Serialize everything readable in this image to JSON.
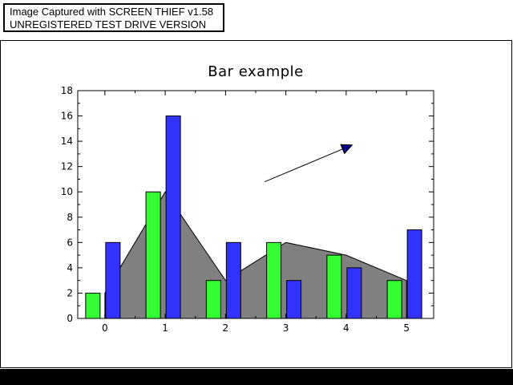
{
  "banner": {
    "line1": "Image Captured with SCREEN THIEF v1.58",
    "line2": "UNREGISTERED TEST DRIVE VERSION"
  },
  "colors": {
    "series_green": "#33ff33",
    "series_blue": "#3333ff",
    "area_fill": "#808080",
    "arrow_head": "#000080"
  },
  "chart_data": {
    "type": "bar",
    "title": "Bar example",
    "xlabel": "",
    "ylabel": "",
    "x": [
      0,
      1,
      2,
      3,
      4,
      5
    ],
    "x_tick_labels": [
      "0",
      "1",
      "2",
      "3",
      "4",
      "5"
    ],
    "y_tick_labels": [
      "0",
      "2",
      "4",
      "6",
      "8",
      "10",
      "12",
      "14",
      "16",
      "18"
    ],
    "ylim": [
      0,
      18
    ],
    "xlim": [
      -0.45,
      5.45
    ],
    "grid": false,
    "series": [
      {
        "type": "bar",
        "values": [
          2,
          10,
          3,
          6,
          5,
          3
        ]
      },
      {
        "type": "bar",
        "values": [
          6,
          16,
          6,
          3,
          4,
          7
        ]
      },
      {
        "type": "area",
        "values": [
          2,
          10,
          3,
          6,
          5,
          3
        ]
      }
    ],
    "annotations": [
      {
        "type": "arrow",
        "from": [
          2.65,
          10.8
        ],
        "to": [
          4.1,
          13.7
        ]
      }
    ]
  }
}
